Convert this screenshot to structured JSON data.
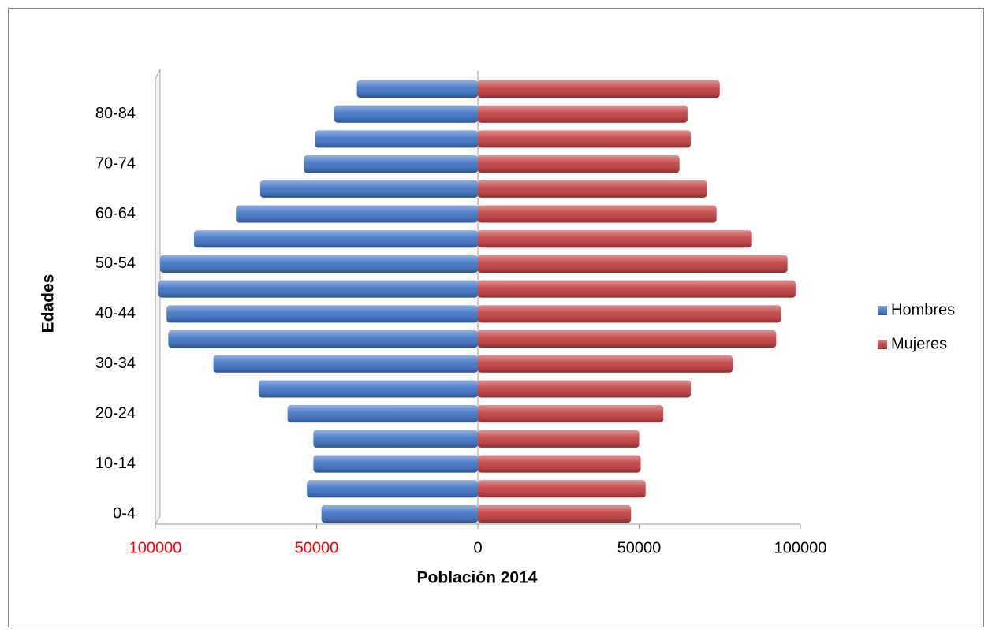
{
  "chart_data": {
    "type": "pyramid",
    "xlabel": "Población  2014",
    "ylabel": "Edades",
    "categories": [
      "0-4",
      null,
      "10-14",
      null,
      "20-24",
      null,
      "30-34",
      null,
      "40-44",
      null,
      "50-54",
      null,
      "60-64",
      null,
      "70-74",
      null,
      "80-84",
      null
    ],
    "series": [
      {
        "name": "Hombres",
        "color": "#3a6fc4",
        "values": [
          -48500,
          -53000,
          -51000,
          -51000,
          -59000,
          -68000,
          -82000,
          -96000,
          -96500,
          -99000,
          -98500,
          -88000,
          -75000,
          -67500,
          -54000,
          -50500,
          -44500,
          -37500
        ]
      },
      {
        "name": "Mujeres",
        "color": "#c0393b",
        "values": [
          47500,
          52000,
          50500,
          50000,
          57500,
          66000,
          79000,
          92500,
          94000,
          98500,
          96000,
          85000,
          74000,
          71000,
          62500,
          66000,
          65000,
          75000
        ]
      }
    ],
    "xlim": [
      -100000,
      100000
    ],
    "xticks": [
      {
        "value": -100000,
        "label": "100000"
      },
      {
        "value": -50000,
        "label": "50000"
      },
      0,
      50000,
      100000
    ],
    "negative_tick_color": "#ff0000",
    "legend": "right"
  }
}
